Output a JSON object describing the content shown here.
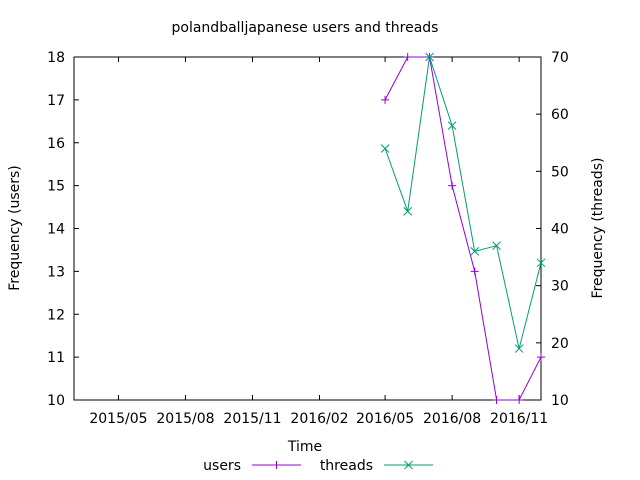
{
  "chart_data": {
    "type": "line",
    "title": "polandballjapanese users and threads",
    "xlabel": "Time",
    "ylabel_left": "Frequency (users)",
    "ylabel_right": "Frequency (threads)",
    "x_ticks": [
      "2015/05",
      "2015/08",
      "2015/11",
      "2016/02",
      "2016/05",
      "2016/08",
      "2016/11"
    ],
    "x_tick_dates": [
      "2015-05-01",
      "2015-08-01",
      "2015-11-01",
      "2016-02-01",
      "2016-05-01",
      "2016-08-01",
      "2016-11-01"
    ],
    "x_range": [
      "2015-03-01",
      "2016-12-01"
    ],
    "y_left_range": [
      10,
      18
    ],
    "y_left_ticks": [
      "10",
      "11",
      "12",
      "13",
      "14",
      "15",
      "16",
      "17",
      "18"
    ],
    "y_right_range": [
      10,
      70
    ],
    "y_right_ticks": [
      "10",
      "20",
      "30",
      "40",
      "50",
      "60",
      "70"
    ],
    "grid": false,
    "legend_position": "bottom-center",
    "series": [
      {
        "name": "users",
        "axis": "left",
        "marker": "plus",
        "color": "#9400d3",
        "x": [
          "2016-05-01",
          "2016-06-01",
          "2016-07-01",
          "2016-08-01",
          "2016-09-01",
          "2016-10-01",
          "2016-11-01",
          "2016-12-01"
        ],
        "values": [
          17,
          18,
          18,
          15,
          13,
          10,
          10,
          11
        ]
      },
      {
        "name": "threads",
        "axis": "right",
        "marker": "x",
        "color": "#009e73",
        "x": [
          "2016-05-01",
          "2016-06-01",
          "2016-07-01",
          "2016-08-01",
          "2016-09-01",
          "2016-10-01",
          "2016-11-01",
          "2016-12-01"
        ],
        "values": [
          54,
          43,
          70,
          58,
          36,
          37,
          19,
          34
        ]
      }
    ]
  }
}
